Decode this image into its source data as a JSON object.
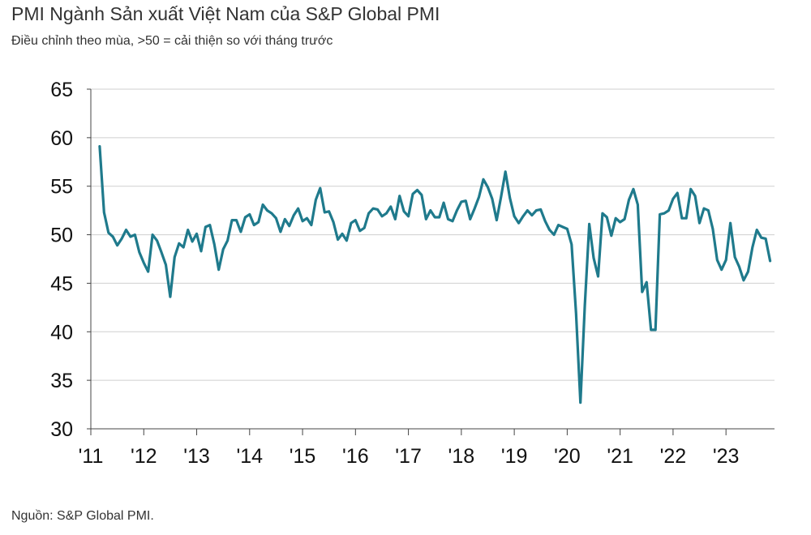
{
  "header": {
    "title": "PMI Ngành Sản xuất Việt Nam của S&P Global PMI",
    "subtitle": "Điều chỉnh theo mùa, >50 = cải thiện so với tháng trước"
  },
  "footer": {
    "source": "Nguồn: S&P Global PMI."
  },
  "chart_data": {
    "type": "line",
    "title": "PMI Ngành Sản xuất Việt Nam của S&P Global PMI",
    "subtitle": "Điều chỉnh theo mùa, >50 = cải thiện so với tháng trước",
    "xlabel": "",
    "ylabel": "",
    "ylim": [
      30,
      65
    ],
    "xlim": [
      "2011-01",
      "2023-12"
    ],
    "y_ticks": [
      30,
      35,
      40,
      45,
      50,
      55,
      60,
      65
    ],
    "x_tick_labels": [
      "'11",
      "'12",
      "'13",
      "'14",
      "'15",
      "'16",
      "'17",
      "'18",
      "'19",
      "'20",
      "'21",
      "'22",
      "'23"
    ],
    "grid": "horizontal",
    "line_color": "#1f7a8c",
    "series": [
      {
        "x": [
          "2011-03",
          "2011-04",
          "2011-05",
          "2011-06",
          "2011-07",
          "2011-08",
          "2011-09",
          "2011-10",
          "2011-11",
          "2011-12",
          "2012-01",
          "2012-02",
          "2012-03",
          "2012-04",
          "2012-05",
          "2012-06",
          "2012-07",
          "2012-08",
          "2012-09",
          "2012-10",
          "2012-11",
          "2012-12",
          "2013-01",
          "2013-02",
          "2013-03",
          "2013-04",
          "2013-05",
          "2013-06",
          "2013-07",
          "2013-08",
          "2013-09",
          "2013-10",
          "2013-11",
          "2013-12",
          "2014-01",
          "2014-02",
          "2014-03",
          "2014-04",
          "2014-05",
          "2014-06",
          "2014-07",
          "2014-08",
          "2014-09",
          "2014-10",
          "2014-11",
          "2014-12",
          "2015-01",
          "2015-02",
          "2015-03",
          "2015-04",
          "2015-05",
          "2015-06",
          "2015-07",
          "2015-08",
          "2015-09",
          "2015-10",
          "2015-11",
          "2015-12",
          "2016-01",
          "2016-02",
          "2016-03",
          "2016-04",
          "2016-05",
          "2016-06",
          "2016-07",
          "2016-08",
          "2016-09",
          "2016-10",
          "2016-11",
          "2016-12",
          "2017-01",
          "2017-02",
          "2017-03",
          "2017-04",
          "2017-05",
          "2017-06",
          "2017-07",
          "2017-08",
          "2017-09",
          "2017-10",
          "2017-11",
          "2017-12",
          "2018-01",
          "2018-02",
          "2018-03",
          "2018-04",
          "2018-05",
          "2018-06",
          "2018-07",
          "2018-08",
          "2018-09",
          "2018-10",
          "2018-11",
          "2018-12",
          "2019-01",
          "2019-02",
          "2019-03",
          "2019-04",
          "2019-05",
          "2019-06",
          "2019-07",
          "2019-08",
          "2019-09",
          "2019-10",
          "2019-11",
          "2019-12",
          "2020-01",
          "2020-02",
          "2020-03",
          "2020-04",
          "2020-05",
          "2020-06",
          "2020-07",
          "2020-08",
          "2020-09",
          "2020-10",
          "2020-11",
          "2020-12",
          "2021-01",
          "2021-02",
          "2021-03",
          "2021-04",
          "2021-05",
          "2021-06",
          "2021-07",
          "2021-08",
          "2021-09",
          "2021-10",
          "2021-11",
          "2021-12",
          "2022-01",
          "2022-02",
          "2022-03",
          "2022-04",
          "2022-05",
          "2022-06",
          "2022-07",
          "2022-08",
          "2022-09",
          "2022-10",
          "2022-11",
          "2022-12",
          "2023-01",
          "2023-02",
          "2023-03",
          "2023-04",
          "2023-05",
          "2023-06",
          "2023-07",
          "2023-08",
          "2023-09",
          "2023-10",
          "2023-11"
        ],
        "values": [
          59.1,
          52.3,
          50.2,
          49.8,
          48.9,
          49.6,
          50.5,
          49.8,
          50.0,
          48.2,
          47.1,
          46.2,
          50.0,
          49.4,
          48.2,
          46.9,
          43.6,
          47.7,
          49.1,
          48.7,
          50.5,
          49.3,
          50.1,
          48.3,
          50.8,
          51.0,
          49.0,
          46.4,
          48.5,
          49.4,
          51.5,
          51.5,
          50.3,
          51.8,
          52.1,
          51.0,
          51.3,
          53.1,
          52.5,
          52.2,
          51.7,
          50.3,
          51.6,
          50.9,
          52.0,
          52.7,
          51.4,
          51.7,
          51.0,
          53.6,
          54.8,
          52.3,
          52.4,
          51.3,
          49.5,
          50.1,
          49.4,
          51.2,
          51.5,
          50.4,
          50.7,
          52.2,
          52.7,
          52.6,
          51.9,
          52.2,
          52.9,
          51.6,
          54.0,
          52.4,
          51.9,
          54.2,
          54.6,
          54.1,
          51.6,
          52.5,
          51.8,
          51.8,
          53.3,
          51.6,
          51.4,
          52.5,
          53.4,
          53.5,
          51.6,
          52.7,
          53.9,
          55.7,
          54.9,
          53.7,
          51.5,
          53.9,
          56.5,
          53.8,
          51.9,
          51.2,
          51.9,
          52.5,
          52.0,
          52.5,
          52.6,
          51.4,
          50.5,
          50.0,
          51.0,
          50.8,
          50.6,
          49.0,
          41.9,
          32.7,
          42.7,
          51.1,
          47.6,
          45.7,
          52.2,
          51.8,
          49.9,
          51.7,
          51.3,
          51.6,
          53.6,
          54.7,
          53.1,
          44.1,
          45.1,
          40.2,
          40.2,
          52.1,
          52.2,
          52.5,
          53.7,
          54.3,
          51.7,
          51.7,
          54.7,
          54.0,
          51.2,
          52.7,
          52.5,
          50.6,
          47.4,
          46.4,
          47.4,
          51.2,
          47.7,
          46.7,
          45.3,
          46.2,
          48.7,
          50.5,
          49.7,
          49.6,
          47.3
        ]
      }
    ]
  }
}
